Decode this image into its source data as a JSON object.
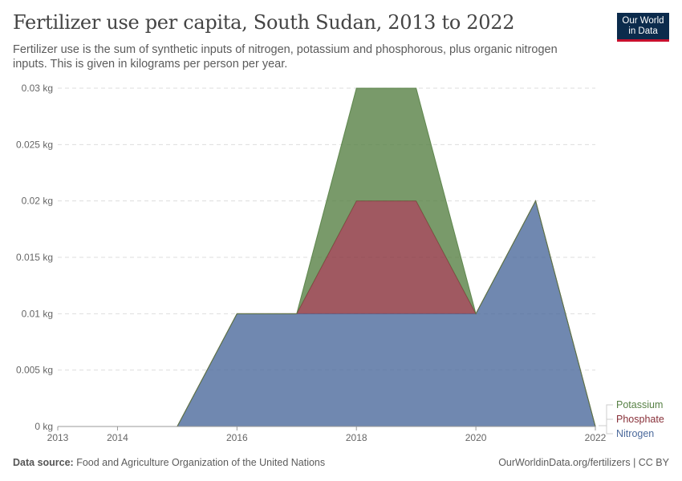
{
  "header": {
    "title": "Fertilizer use per capita, South Sudan, 2013 to 2022",
    "subtitle": "Fertilizer use is the sum of synthetic inputs of nitrogen, potassium and phosphorous, plus organic nitrogen inputs. This is given in kilograms per person per year."
  },
  "logo": {
    "line1": "Our World",
    "line2": "in Data"
  },
  "footer": {
    "source_label": "Data source:",
    "source_text": "Food and Agriculture Organization of the United Nations",
    "right_text": "OurWorldinData.org/fertilizers | CC BY"
  },
  "chart_data": {
    "type": "area",
    "stacked": true,
    "title": "Fertilizer use per capita, South Sudan, 2013 to 2022",
    "x": [
      2013,
      2014,
      2015,
      2016,
      2017,
      2018,
      2019,
      2020,
      2021,
      2022
    ],
    "x_tick_labels": [
      "2013",
      "2014",
      "2016",
      "2018",
      "2020",
      "2022"
    ],
    "y_tick_labels": [
      "0 kg",
      "0.005 kg",
      "0.01 kg",
      "0.015 kg",
      "0.02 kg",
      "0.025 kg",
      "0.03 kg"
    ],
    "y_ticks": [
      0,
      0.005,
      0.01,
      0.015,
      0.02,
      0.025,
      0.03
    ],
    "ylim": [
      0,
      0.03
    ],
    "xlim": [
      2013,
      2022
    ],
    "grid": true,
    "legend_placement": "right",
    "series": [
      {
        "name": "Nitrogen",
        "color": "#4c6a9c",
        "values": [
          0,
          0,
          0,
          0.01,
          0.01,
          0.01,
          0.01,
          0.01,
          0.02,
          0
        ]
      },
      {
        "name": "Phosphate",
        "color": "#883039",
        "values": [
          0,
          0,
          0,
          0,
          0,
          0.01,
          0.01,
          0,
          0,
          0
        ]
      },
      {
        "name": "Potassium",
        "color": "#578145",
        "values": [
          0,
          0,
          0,
          0,
          0,
          0.01,
          0.01,
          0,
          0,
          0
        ]
      }
    ]
  }
}
